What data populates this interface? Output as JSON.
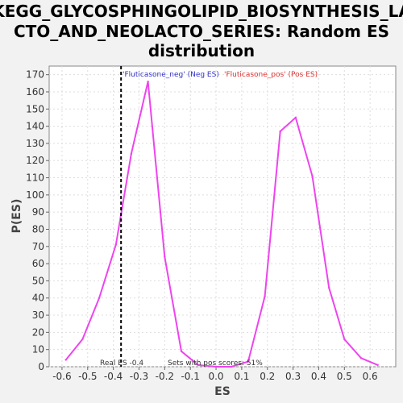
{
  "chart_data": {
    "type": "line",
    "title_lines": [
      "KEGG_GLYCOSPHINGOLIPID_BIOSYNTHESIS_LA",
      "CTO_AND_NEOLACTO_SERIES: Random ES",
      "distribution"
    ],
    "xlabel": "ES",
    "ylabel": "P(ES)",
    "xlim": [
      -0.65,
      0.7
    ],
    "ylim": [
      0,
      175
    ],
    "x_ticks": [
      "-0.6",
      "-0.5",
      "-0.4",
      "-0.3",
      "-0.2",
      "-0.1",
      "0.0",
      "0.1",
      "0.2",
      "0.3",
      "0.4",
      "0.5",
      "0.6"
    ],
    "x_tick_values": [
      -0.6,
      -0.5,
      -0.4,
      -0.3,
      -0.2,
      -0.1,
      0.0,
      0.1,
      0.2,
      0.3,
      0.4,
      0.5,
      0.6
    ],
    "y_ticks": [
      "0",
      "10",
      "20",
      "30",
      "40",
      "50",
      "60",
      "70",
      "80",
      "90",
      "100",
      "110",
      "120",
      "130",
      "140",
      "150",
      "160",
      "170"
    ],
    "y_tick_values": [
      0,
      10,
      20,
      30,
      40,
      50,
      60,
      70,
      80,
      90,
      100,
      110,
      120,
      130,
      140,
      150,
      160,
      170
    ],
    "grid": true,
    "series": [
      {
        "color": "#ee44ee",
        "x": [
          -0.585,
          -0.52,
          -0.455,
          -0.39,
          -0.33,
          -0.265,
          -0.2,
          -0.135,
          -0.07,
          0.0,
          0.06,
          0.125,
          0.19,
          0.25,
          0.31,
          0.375,
          0.44,
          0.5,
          0.565,
          0.63
        ],
        "y": [
          4,
          16,
          40,
          71,
          124,
          166,
          64,
          9,
          1,
          0,
          0,
          3,
          41,
          137,
          145,
          111,
          46,
          16,
          5,
          1
        ]
      }
    ],
    "real_es": {
      "x": -0.37,
      "label": "Real ES -0.4"
    },
    "neg_label": {
      "text": "'Fluticasone_neg' (Neg ES)",
      "color": "#3333cc"
    },
    "pos_label": {
      "text": "'Fluticasone_pos' (Pos ES)",
      "color": "#dd3333"
    },
    "pos_note": "Sets with pos scores: 51%"
  }
}
